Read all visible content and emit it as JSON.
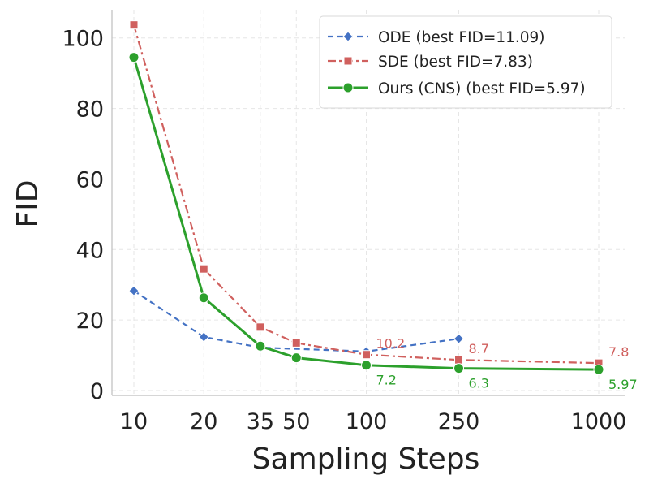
{
  "chart_data": {
    "type": "line",
    "xlabel": "Sampling Steps",
    "ylabel": "FID",
    "x_ticks": [
      "10",
      "20",
      "35",
      "50",
      "100",
      "250",
      "1000"
    ],
    "y_ticks": [
      "0",
      "20",
      "40",
      "60",
      "80",
      "100"
    ],
    "ylim": [
      0,
      108
    ],
    "x_scale": "log",
    "grid": true,
    "legend_position": "top-right",
    "series": [
      {
        "name": "ODE  (best FID=11.09)",
        "color": "#4472c4",
        "line_style": "dashed",
        "marker": "diamond",
        "x": [
          10,
          20,
          35,
          100,
          250
        ],
        "y": [
          28.3,
          15.2,
          12.2,
          11.09,
          14.7
        ]
      },
      {
        "name": "SDE  (best FID=7.83)",
        "color": "#d0605e",
        "line_style": "dashdot",
        "marker": "square",
        "x": [
          10,
          20,
          35,
          50,
          100,
          250,
          1000
        ],
        "y": [
          103.7,
          34.5,
          18.0,
          13.5,
          10.2,
          8.7,
          7.8
        ]
      },
      {
        "name": "Ours (CNS)  (best FID=5.97)",
        "color": "#2ca02c",
        "line_style": "solid",
        "marker": "circle",
        "x": [
          10,
          20,
          35,
          50,
          100,
          250,
          1000
        ],
        "y": [
          94.5,
          26.3,
          12.6,
          9.3,
          7.2,
          6.3,
          5.97
        ]
      }
    ],
    "annotations": [
      {
        "text": "10.2",
        "series": 1,
        "x": 100
      },
      {
        "text": "8.7",
        "series": 1,
        "x": 250
      },
      {
        "text": "7.8",
        "series": 1,
        "x": 1000
      },
      {
        "text": "7.2",
        "series": 2,
        "x": 100
      },
      {
        "text": "6.3",
        "series": 2,
        "x": 250
      },
      {
        "text": "5.97",
        "series": 2,
        "x": 1000
      }
    ]
  }
}
